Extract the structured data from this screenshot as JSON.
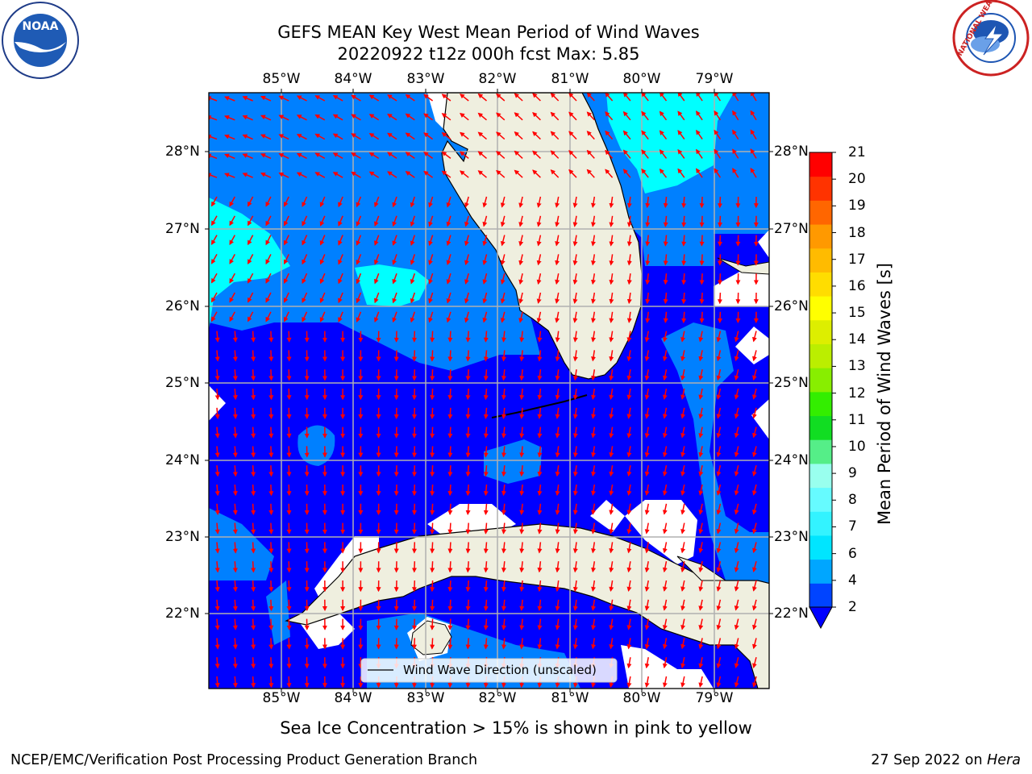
{
  "title": {
    "line1": "GEFS MEAN Key West Mean Period of Wind Waves",
    "line2": "20220922 t12z 000h fcst   Max: 5.85"
  },
  "map": {
    "lon_labels": [
      "85°W",
      "84°W",
      "83°W",
      "82°W",
      "81°W",
      "80°W",
      "79°W"
    ],
    "lat_labels": [
      "28°N",
      "27°N",
      "26°N",
      "25°N",
      "24°N",
      "23°N",
      "22°N"
    ],
    "legend_label": "Wind Wave Direction (unscaled)",
    "colors": {
      "land": "#efefdf",
      "blue": "#0000ff",
      "mid_blue": "#0080ff",
      "cyan": "#00ffff",
      "arrow": "#ff0000",
      "grid": "#b0b0b0"
    }
  },
  "colorbar": {
    "title": "Mean Period of Wind Waves [s]",
    "ticks": [
      "2",
      "4",
      "6",
      "7",
      "8",
      "9",
      "10",
      "11",
      "12",
      "13",
      "14",
      "15",
      "16",
      "17",
      "18",
      "19",
      "20",
      "21"
    ],
    "colors": [
      "#0044ff",
      "#00a6ff",
      "#00e5ff",
      "#33f3ff",
      "#66fbff",
      "#99ffee",
      "#55ee88",
      "#11dd22",
      "#33ee00",
      "#88ee00",
      "#bbee00",
      "#ddee00",
      "#ffff00",
      "#ffdd00",
      "#ffbb00",
      "#ff9900",
      "#ff6600",
      "#ff3300",
      "#ff0000"
    ]
  },
  "note": "Sea Ice Concentration > 15% is shown in pink to yellow",
  "footer": {
    "left": "NCEP/EMC/Verification Post Processing Product Generation Branch",
    "date": "27 Sep 2022 on",
    "machine": "Hera"
  },
  "logos": {
    "left_text": "NOAA",
    "right_text": "NATIONAL WEATHER SERVICE"
  }
}
